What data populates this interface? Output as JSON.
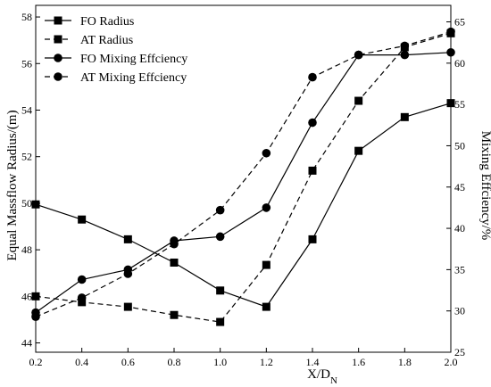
{
  "chart_data": {
    "type": "line",
    "xlabel": "X/D",
    "xlabel_sub": "N",
    "ylabel_left": "Equal Massflow Radius/(m)",
    "ylabel_right": "Mixing Effciency/%",
    "xlim": [
      0.2,
      2.0
    ],
    "ylim_left": [
      43.6,
      58.5
    ],
    "ylim_right": [
      25,
      67
    ],
    "x_ticks": [
      0.2,
      0.4,
      0.6,
      0.8,
      1.0,
      1.2,
      1.4,
      1.6,
      1.8,
      2.0
    ],
    "y_left_ticks": [
      44,
      46,
      48,
      50,
      52,
      54,
      56,
      58
    ],
    "y_right_ticks": [
      25,
      30,
      35,
      40,
      45,
      50,
      55,
      60,
      65
    ],
    "grid": false,
    "legend_position": "top-left",
    "series": [
      {
        "name": "FO Radius",
        "axis": "left",
        "marker": "square",
        "dash": "solid",
        "x": [
          0.2,
          0.4,
          0.6,
          0.8,
          1.0,
          1.2,
          1.4,
          1.6,
          1.8,
          2.0
        ],
        "y": [
          49.95,
          49.3,
          48.45,
          47.45,
          46.25,
          45.55,
          48.45,
          52.25,
          53.7,
          54.3
        ]
      },
      {
        "name": "AT Radius",
        "axis": "left",
        "marker": "square",
        "dash": "dashed",
        "x": [
          0.2,
          0.4,
          0.6,
          0.8,
          1.0,
          1.2,
          1.4,
          1.6,
          1.8,
          2.0
        ],
        "y": [
          46.0,
          45.75,
          45.55,
          45.2,
          44.9,
          47.35,
          51.4,
          54.4,
          56.7,
          57.3
        ]
      },
      {
        "name": "FO Mixing Effciency",
        "axis": "right",
        "marker": "circle",
        "dash": "solid",
        "x": [
          0.2,
          0.4,
          0.6,
          0.8,
          1.0,
          1.2,
          1.4,
          1.6,
          1.8,
          2.0
        ],
        "y": [
          29.8,
          33.8,
          35.0,
          38.5,
          39.0,
          42.5,
          52.8,
          61.0,
          61.0,
          61.3
        ]
      },
      {
        "name": "AT Mixing Effciency",
        "axis": "right",
        "marker": "circle",
        "dash": "dashed",
        "x": [
          0.2,
          0.4,
          0.6,
          0.8,
          1.0,
          1.2,
          1.4,
          1.6,
          1.8,
          2.0
        ],
        "y": [
          29.3,
          31.6,
          34.5,
          38.1,
          42.2,
          49.1,
          58.3,
          61.0,
          62.1,
          63.8
        ]
      }
    ]
  }
}
